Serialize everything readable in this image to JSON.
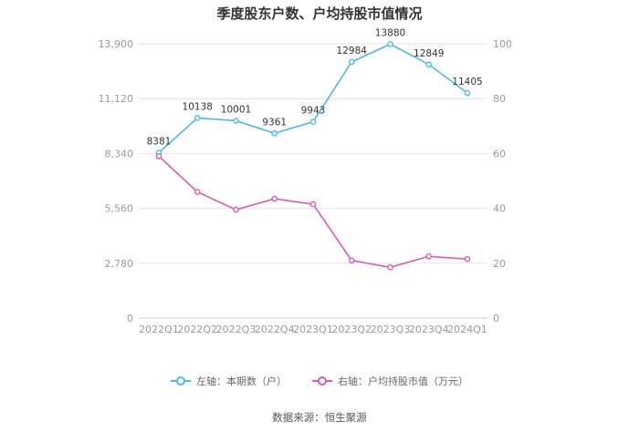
{
  "title": "季度股东户数、户均持股市值情况",
  "source": "数据来源：恒生聚源",
  "colors": {
    "holders": "#4db8ec",
    "value": "#d95bb3",
    "grid": "#e6e6e6",
    "axis": "#cccccc"
  },
  "chart_data": {
    "type": "line",
    "title": "季度股东户数、户均持股市值情况",
    "categories": [
      "2022Q1",
      "2022Q2",
      "2022Q3",
      "2022Q4",
      "2023Q1",
      "2023Q2",
      "2023Q3",
      "2023Q4",
      "2024Q1"
    ],
    "left_axis": {
      "ylim": [
        0,
        13900
      ],
      "ticks": [
        "0",
        "2,780",
        "5,560",
        "8,340",
        "11,120",
        "13,900"
      ]
    },
    "right_axis": {
      "ylim": [
        0,
        100
      ],
      "ticks": [
        "0",
        "20",
        "40",
        "60",
        "80",
        "100"
      ]
    },
    "series": [
      {
        "name": "左轴：本期数（户）",
        "axis": "left",
        "values": [
          8381,
          10138,
          10001,
          9361,
          9943,
          12984,
          13880,
          12849,
          11405
        ],
        "labels": [
          "8381",
          "10138",
          "10001",
          "9361",
          "9943",
          "12984",
          "13880",
          "12849",
          "11405"
        ]
      },
      {
        "name": "右轴：户均持股市值（万元）",
        "axis": "right",
        "values": [
          59,
          46,
          39.5,
          43.5,
          41.5,
          21,
          18.5,
          22.5,
          21.5
        ]
      }
    ],
    "grid": true,
    "legend": "bottom-center"
  }
}
